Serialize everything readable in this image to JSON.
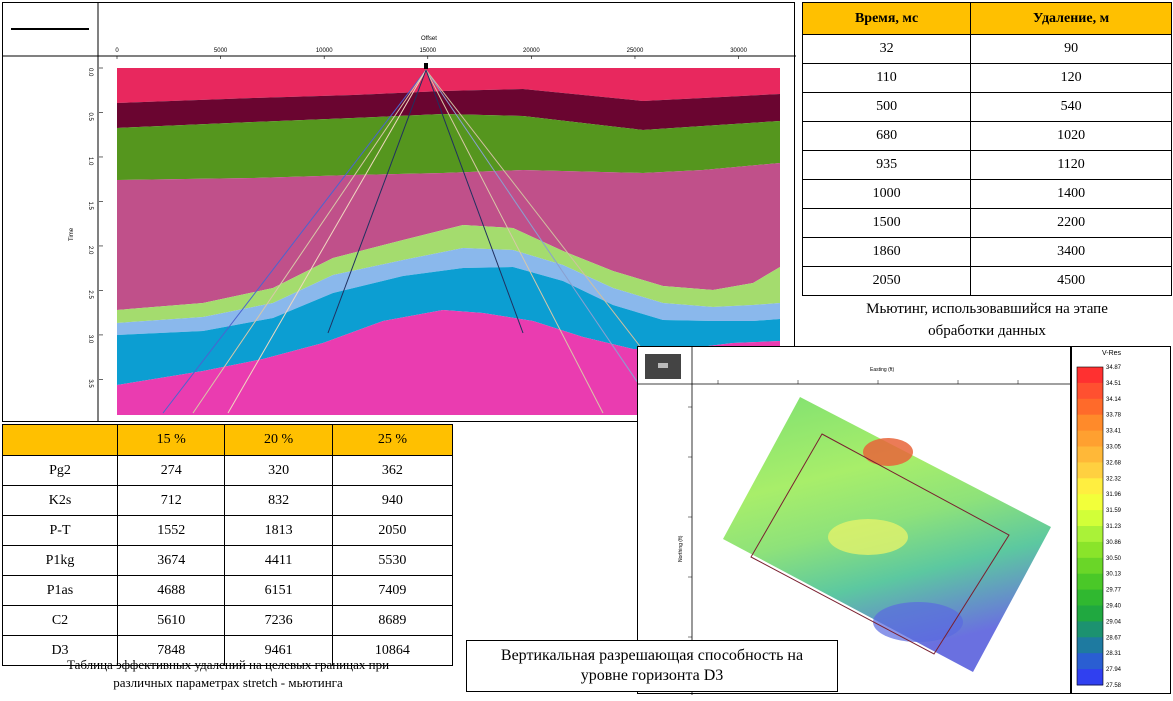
{
  "seismic": {
    "x_title": "Offset",
    "y_title": "Time",
    "x_ticks": [
      "0",
      "5000",
      "10000",
      "15000",
      "20000",
      "25000",
      "30000"
    ],
    "y_ticks": [
      "0.0",
      "0.5",
      "1.0",
      "1.5",
      "2.0",
      "2.5",
      "3.0",
      "3.5"
    ]
  },
  "mute_table": {
    "headers": [
      "Время, мс",
      "Удаление, м"
    ],
    "rows": [
      [
        "32",
        "90"
      ],
      [
        "110",
        "120"
      ],
      [
        "500",
        "540"
      ],
      [
        "680",
        "1020"
      ],
      [
        "935",
        "1120"
      ],
      [
        "1000",
        "1400"
      ],
      [
        "1500",
        "2200"
      ],
      [
        "1860",
        "3400"
      ],
      [
        "2050",
        "4500"
      ]
    ],
    "caption_line1": "Мьютинг, использовавшийся на этапе",
    "caption_line2": "обработки данных"
  },
  "eff_table": {
    "headers": [
      "",
      "15 %",
      "20 %",
      "25 %"
    ],
    "rows": [
      [
        "Pg2",
        "274",
        "320",
        "362"
      ],
      [
        "K2s",
        "712",
        "832",
        "940"
      ],
      [
        "P-T",
        "1552",
        "1813",
        "2050"
      ],
      [
        "P1kg",
        "3674",
        "4411",
        "5530"
      ],
      [
        "P1as",
        "4688",
        "6151",
        "7409"
      ],
      [
        "C2",
        "5610",
        "7236",
        "8689"
      ],
      [
        "D3",
        "7848",
        "9461",
        "10864"
      ]
    ],
    "caption_line1": "Таблица эффективных удалений на целевых границах при",
    "caption_line2": "различных параметрах  stretch - мьютинга"
  },
  "map": {
    "x_title": "Easting (ft)",
    "y_title": "Northing (ft)",
    "caption_line1": "Вертикальная разрешающая способность на",
    "caption_line2": "уровне горизонта D3"
  },
  "colorbar": {
    "title": "V-Res",
    "labels": [
      "34.87",
      "34.51",
      "34.14",
      "33.78",
      "33.41",
      "33.05",
      "32.68",
      "32.32",
      "31.96",
      "31.59",
      "31.23",
      "30.86",
      "30.50",
      "30.13",
      "29.77",
      "29.40",
      "29.04",
      "28.67",
      "28.31",
      "27.94",
      "27.58"
    ]
  },
  "colors": {
    "header_fill": "#ffc000"
  },
  "chart_data": [
    {
      "type": "table",
      "title": "Мьютинг, использовавшийся на этапе обработки данных",
      "columns": [
        "Время, мс",
        "Удаление, м"
      ],
      "rows": [
        [
          32,
          90
        ],
        [
          110,
          120
        ],
        [
          500,
          540
        ],
        [
          680,
          1020
        ],
        [
          935,
          1120
        ],
        [
          1000,
          1400
        ],
        [
          1500,
          2200
        ],
        [
          1860,
          3400
        ],
        [
          2050,
          4500
        ]
      ]
    },
    {
      "type": "table",
      "title": "Таблица эффективных удалений на целевых границах при различных параметрах stretch - мьютинга",
      "columns": [
        "",
        "15 %",
        "20 %",
        "25 %"
      ],
      "rows": [
        [
          "Pg2",
          274,
          320,
          362
        ],
        [
          "K2s",
          712,
          832,
          940
        ],
        [
          "P-T",
          1552,
          1813,
          2050
        ],
        [
          "P1kg",
          3674,
          4411,
          5530
        ],
        [
          "P1as",
          4688,
          6151,
          7409
        ],
        [
          "C2",
          5610,
          7236,
          8689
        ],
        [
          "D3",
          7848,
          9461,
          10864
        ]
      ]
    },
    {
      "type": "area",
      "xlabel": "Offset",
      "ylabel": "Time",
      "xlim": [
        0,
        32000
      ],
      "ylim": [
        3.9,
        0
      ]
    },
    {
      "type": "heatmap",
      "legend_title": "V-Res",
      "color_range": [
        27.58,
        34.87
      ]
    }
  ]
}
